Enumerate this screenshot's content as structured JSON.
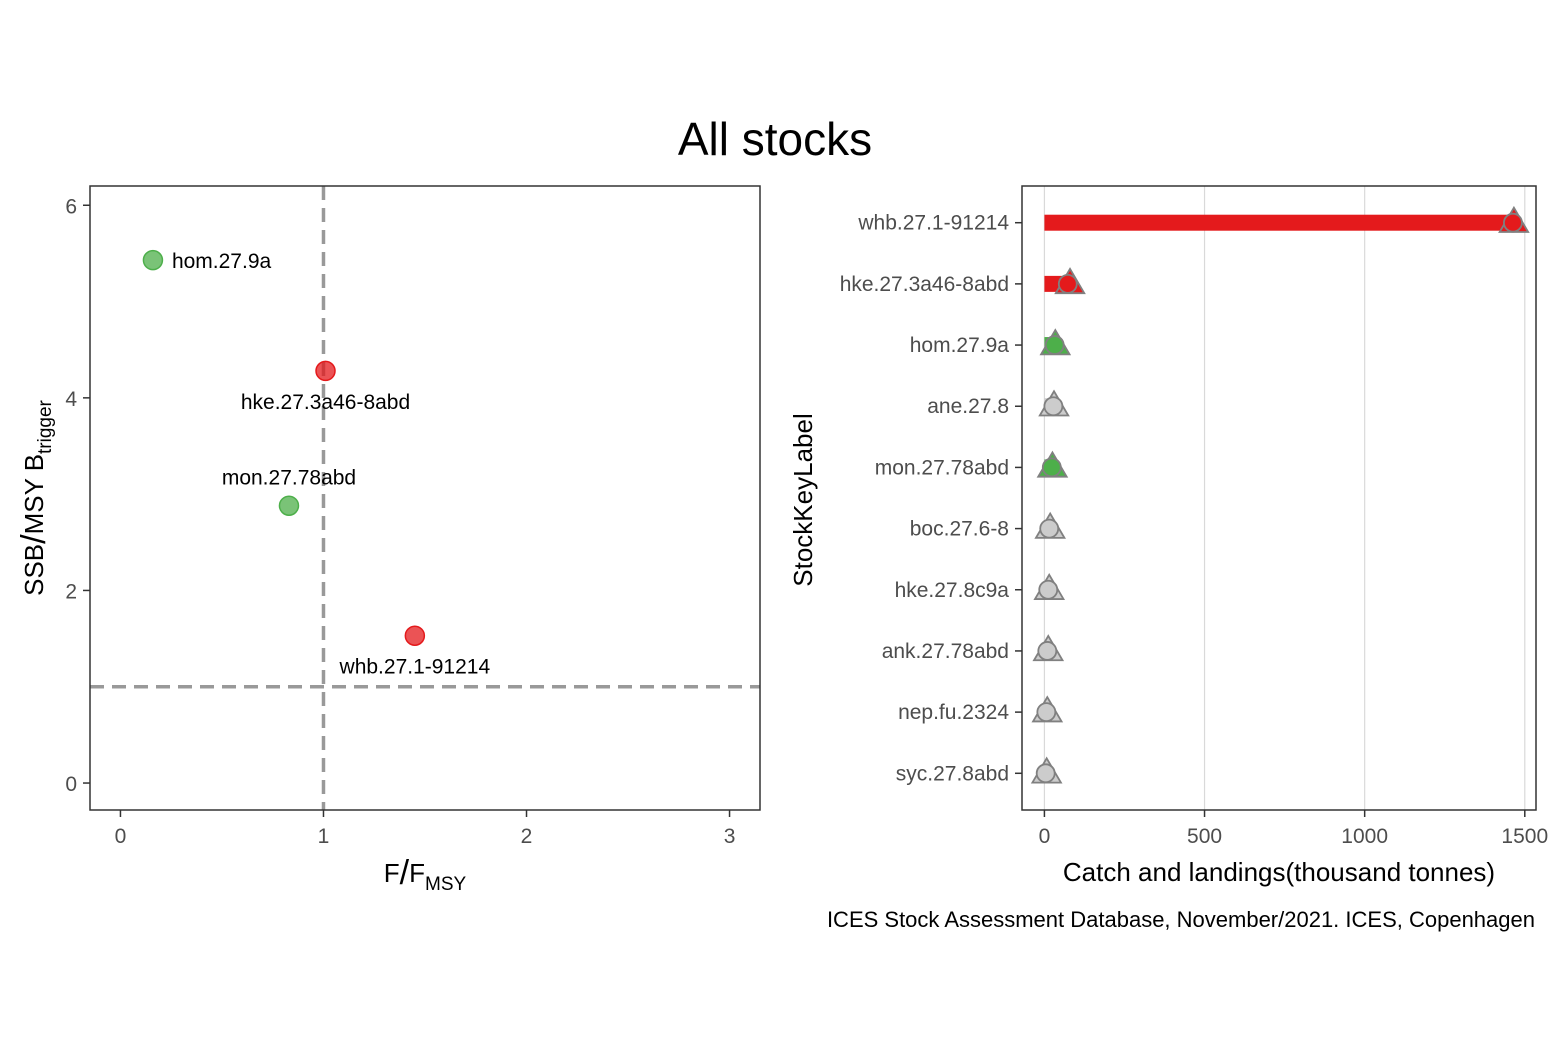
{
  "title": "All stocks",
  "caption": "ICES Stock Assessment Database, November/2021. ICES, Copenhagen",
  "colors": {
    "green": "#4daf4a",
    "red": "#e41a1c",
    "grey": "#cccccc",
    "ref_line": "#999999"
  },
  "chart_data": [
    {
      "type": "scatter",
      "xlabel": {
        "base": "F",
        "sep": "/",
        "main": "F",
        "sub": "MSY"
      },
      "ylabel": {
        "base": "SSB",
        "sep": "/",
        "main": "MSY B",
        "sub": "trigger"
      },
      "xlim": [
        -0.15,
        3.15
      ],
      "ylim": [
        -0.28,
        6.2
      ],
      "xticks": [
        "0",
        "1",
        "2",
        "3"
      ],
      "yticks": [
        "0",
        "2",
        "4",
        "6"
      ],
      "reference_lines": {
        "x": 1,
        "y": 1
      },
      "points": [
        {
          "label": "hom.27.9a",
          "x": 0.16,
          "y": 5.43,
          "status": "green",
          "label_pos": "right"
        },
        {
          "label": "hke.27.3a46-8abd",
          "x": 1.01,
          "y": 4.28,
          "status": "red",
          "label_pos": "below"
        },
        {
          "label": "mon.27.78abd",
          "x": 0.83,
          "y": 2.88,
          "status": "green",
          "label_pos": "above"
        },
        {
          "label": "whb.27.1-91214",
          "x": 1.45,
          "y": 1.53,
          "status": "red",
          "label_pos": "below"
        }
      ]
    },
    {
      "type": "bar",
      "orientation": "horizontal",
      "xlabel": "Catch and landings(thousand tonnes)",
      "ylabel": "StockKeyLabel",
      "xlim": [
        -70,
        1535
      ],
      "xticks": [
        "0",
        "500",
        "1000",
        "1500"
      ],
      "grid": "vertical",
      "categories": [
        "whb.27.1-91214",
        "hke.27.3a46-8abd",
        "hom.27.9a",
        "ane.27.8",
        "mon.27.78abd",
        "boc.27.6-8",
        "hke.27.8c9a",
        "ank.27.78abd",
        "nep.fu.2324",
        "syc.27.8abd"
      ],
      "series": [
        {
          "name": "catches",
          "marker": "circle",
          "values": [
            1463,
            73,
            32,
            28,
            23,
            15,
            12,
            9,
            6,
            4
          ]
        },
        {
          "name": "landings",
          "marker": "triangle",
          "values": [
            1466,
            80,
            34,
            30,
            25,
            18,
            15,
            12,
            9,
            7
          ]
        }
      ],
      "status": [
        "red",
        "red",
        "green",
        "grey",
        "green",
        "grey",
        "grey",
        "grey",
        "grey",
        "grey"
      ]
    }
  ]
}
